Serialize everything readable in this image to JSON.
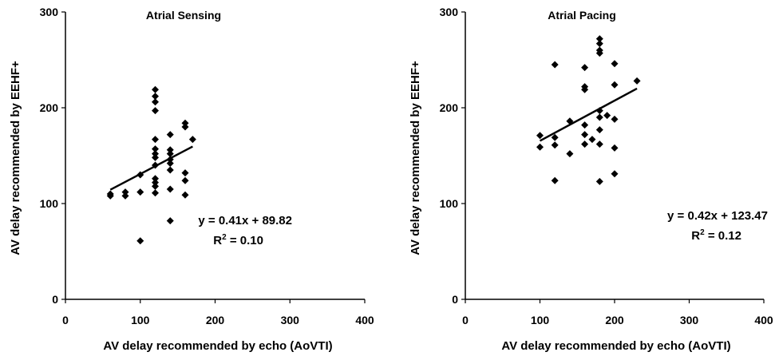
{
  "chart_data": [
    {
      "type": "scatter",
      "title": "Atrial Sensing",
      "xlabel": "AV delay recommended by echo (AoVTI)",
      "ylabel": "AV delay recommended by EEHF+",
      "xlim": [
        0,
        400
      ],
      "ylim": [
        0,
        300
      ],
      "xticks": [
        "0",
        "100",
        "200",
        "300",
        "400"
      ],
      "yticks": [
        "0",
        "100",
        "200",
        "300"
      ],
      "grid": false,
      "points": [
        [
          60,
          108
        ],
        [
          60,
          110
        ],
        [
          80,
          108
        ],
        [
          80,
          112
        ],
        [
          100,
          61
        ],
        [
          100,
          112
        ],
        [
          100,
          130
        ],
        [
          120,
          111
        ],
        [
          120,
          118
        ],
        [
          120,
          122
        ],
        [
          120,
          126
        ],
        [
          120,
          140
        ],
        [
          120,
          148
        ],
        [
          120,
          152
        ],
        [
          120,
          157
        ],
        [
          120,
          167
        ],
        [
          120,
          197
        ],
        [
          120,
          206
        ],
        [
          120,
          212
        ],
        [
          120,
          219
        ],
        [
          140,
          82
        ],
        [
          140,
          115
        ],
        [
          140,
          135
        ],
        [
          140,
          142
        ],
        [
          140,
          146
        ],
        [
          140,
          152
        ],
        [
          140,
          156
        ],
        [
          140,
          172
        ],
        [
          160,
          109
        ],
        [
          160,
          124
        ],
        [
          160,
          132
        ],
        [
          160,
          180
        ],
        [
          160,
          184
        ],
        [
          170,
          167
        ]
      ],
      "trendline": {
        "slope": 0.41,
        "intercept": 89.82,
        "x_range": [
          60,
          170
        ]
      },
      "equation_label": "y = 0.41x + 89.82",
      "r2_label": {
        "base": "R",
        "sup": "2",
        "rest": " = 0.10"
      }
    },
    {
      "type": "scatter",
      "title": "Atrial Pacing",
      "xlabel": "AV delay recommended by echo (AoVTI)",
      "ylabel": "AV delay recommended by EEHF+",
      "xlim": [
        0,
        400
      ],
      "ylim": [
        0,
        300
      ],
      "xticks": [
        "0",
        "100",
        "200",
        "300",
        "400"
      ],
      "yticks": [
        "0",
        "100",
        "200",
        "300"
      ],
      "grid": false,
      "points": [
        [
          100,
          159
        ],
        [
          100,
          171
        ],
        [
          120,
          124
        ],
        [
          120,
          161
        ],
        [
          120,
          169
        ],
        [
          120,
          245
        ],
        [
          140,
          152
        ],
        [
          140,
          186
        ],
        [
          160,
          162
        ],
        [
          160,
          172
        ],
        [
          160,
          182
        ],
        [
          160,
          219
        ],
        [
          160,
          222
        ],
        [
          160,
          242
        ],
        [
          170,
          167
        ],
        [
          180,
          123
        ],
        [
          180,
          162
        ],
        [
          180,
          177
        ],
        [
          180,
          190
        ],
        [
          180,
          197
        ],
        [
          180,
          257
        ],
        [
          180,
          260
        ],
        [
          180,
          267
        ],
        [
          180,
          272
        ],
        [
          190,
          192
        ],
        [
          200,
          131
        ],
        [
          200,
          158
        ],
        [
          200,
          188
        ],
        [
          200,
          224
        ],
        [
          200,
          246
        ],
        [
          230,
          228
        ]
      ],
      "trendline": {
        "slope": 0.42,
        "intercept": 123.47,
        "x_range": [
          100,
          230
        ]
      },
      "equation_label": "y = 0.42x + 123.47",
      "r2_label": {
        "base": "R",
        "sup": "2",
        "rest": " = 0.12"
      }
    }
  ]
}
